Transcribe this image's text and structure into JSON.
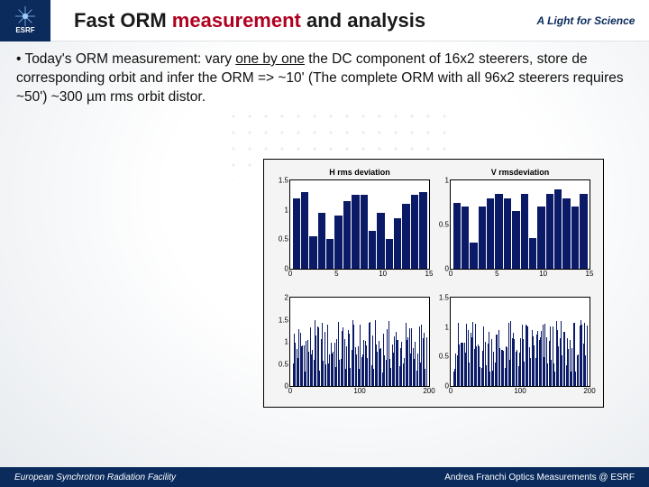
{
  "header": {
    "logo_text": "ESRF",
    "title_pre": "Fast ORM ",
    "title_hl": "measurement",
    "title_post": " and analysis",
    "tagline": "A Light for Science"
  },
  "bullet": {
    "pre": "Today's ORM measurement: vary ",
    "underlined": "one by one",
    "post": " the DC component of 16x2 steerers, store de corresponding orbit and infer the ORM => ~10' (The complete ORM with all 96x2 steerers requires ~50') ~300 µm rms orbit distor."
  },
  "charts": {
    "panel_bg": "#f4f4f4",
    "bar_color": "#0a1a66",
    "subplot_bg": "#ffffff",
    "top_left": {
      "title": "H rms deviation",
      "ymax": 1.5,
      "yticks": [
        0,
        0.5,
        1,
        1.5
      ],
      "xticks": [
        0,
        5,
        10,
        15
      ],
      "values": [
        1.2,
        1.3,
        0.55,
        0.95,
        0.5,
        0.9,
        1.15,
        1.25,
        1.25,
        0.65,
        0.95,
        0.5,
        0.85,
        1.1,
        1.25,
        1.3
      ]
    },
    "top_right": {
      "title": "V rmsdeviation",
      "ymax": 1.0,
      "yticks": [
        0,
        0.5,
        1
      ],
      "xticks": [
        0,
        5,
        10,
        15
      ],
      "values": [
        0.75,
        0.7,
        0.3,
        0.7,
        0.8,
        0.85,
        0.8,
        0.65,
        0.85,
        0.35,
        0.7,
        0.85,
        0.9,
        0.8,
        0.7,
        0.85
      ]
    },
    "bottom_left": {
      "title": "",
      "ymax": 2.0,
      "yticks": [
        0,
        0.5,
        1,
        1.5,
        2
      ],
      "xticks": [
        0,
        100,
        200
      ],
      "n_bars": 110
    },
    "bottom_right": {
      "title": "",
      "ymax": 1.5,
      "yticks": [
        0,
        0.5,
        1,
        1.5
      ],
      "xticks": [
        0,
        100,
        200
      ],
      "n_bars": 110
    }
  },
  "footer": {
    "left": "European Synchrotron Radiation Facility",
    "right": "Andrea Franchi Optics Measurements @ ESRF"
  }
}
